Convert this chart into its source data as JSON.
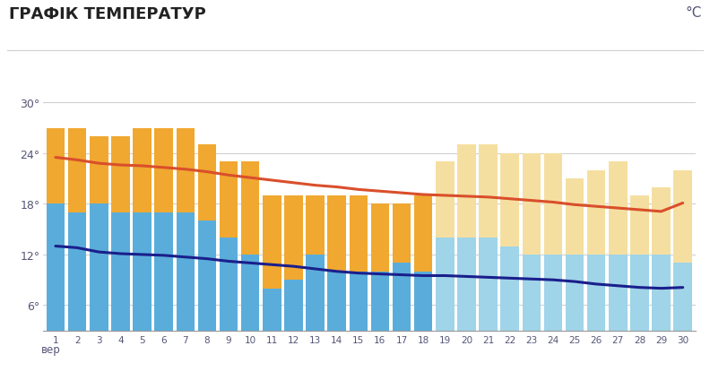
{
  "title": "ГРАФІК ТЕМПЕРАТУР",
  "unit": "°C",
  "days": [
    1,
    2,
    3,
    4,
    5,
    6,
    7,
    8,
    9,
    10,
    11,
    12,
    13,
    14,
    15,
    16,
    17,
    18,
    19,
    20,
    21,
    22,
    23,
    24,
    25,
    26,
    27,
    28,
    29,
    30
  ],
  "xlabelprefix": "вер",
  "ylim_min": 3,
  "ylim_max": 33,
  "yticks": [
    6,
    12,
    18,
    24,
    30
  ],
  "avg_high": [
    23.5,
    23.2,
    22.8,
    22.6,
    22.5,
    22.3,
    22.1,
    21.8,
    21.4,
    21.1,
    20.8,
    20.5,
    20.2,
    20.0,
    19.7,
    19.5,
    19.3,
    19.1,
    19.0,
    18.9,
    18.8,
    18.6,
    18.4,
    18.2,
    17.9,
    17.7,
    17.5,
    17.3,
    17.1,
    18.1
  ],
  "avg_low": [
    13.0,
    12.8,
    12.3,
    12.1,
    12.0,
    11.9,
    11.7,
    11.5,
    11.2,
    11.0,
    10.8,
    10.6,
    10.3,
    10.0,
    9.8,
    9.7,
    9.6,
    9.5,
    9.5,
    9.4,
    9.3,
    9.2,
    9.1,
    9.0,
    8.8,
    8.5,
    8.3,
    8.1,
    8.0,
    8.1
  ],
  "fact_high_top": [
    27,
    27,
    26,
    26,
    27,
    27,
    27,
    25,
    23,
    23,
    19,
    19,
    19,
    19,
    19,
    18,
    18,
    19,
    null,
    null,
    null,
    null,
    null,
    null,
    null,
    null,
    null,
    null,
    null,
    null
  ],
  "fact_low_top": [
    18,
    17,
    18,
    17,
    17,
    17,
    17,
    16,
    14,
    12,
    8,
    9,
    12,
    10,
    10,
    10,
    11,
    10,
    null,
    null,
    null,
    null,
    null,
    null,
    null,
    null,
    null,
    null,
    null,
    null
  ],
  "prog_high_top": [
    null,
    null,
    null,
    null,
    null,
    null,
    null,
    null,
    null,
    null,
    null,
    null,
    null,
    null,
    null,
    null,
    null,
    null,
    23,
    25,
    25,
    24,
    24,
    24,
    21,
    22,
    23,
    19,
    20,
    22
  ],
  "prog_low_top": [
    null,
    null,
    null,
    null,
    null,
    null,
    null,
    null,
    null,
    null,
    null,
    null,
    null,
    null,
    null,
    null,
    null,
    null,
    14,
    14,
    14,
    13,
    12,
    12,
    12,
    12,
    12,
    12,
    12,
    11
  ],
  "color_avg_high": "#d94f2b",
  "color_avg_low": "#1a1f8c",
  "color_fact_high": "#f0a830",
  "color_fact_low": "#5aadda",
  "color_prog_high": "#f5dfa0",
  "color_prog_low": "#a0d4e8",
  "bg_color": "#ffffff",
  "grid_color": "#d0d0d0",
  "title_color": "#222222",
  "tick_label_color": "#555577",
  "bar_width": 0.85
}
